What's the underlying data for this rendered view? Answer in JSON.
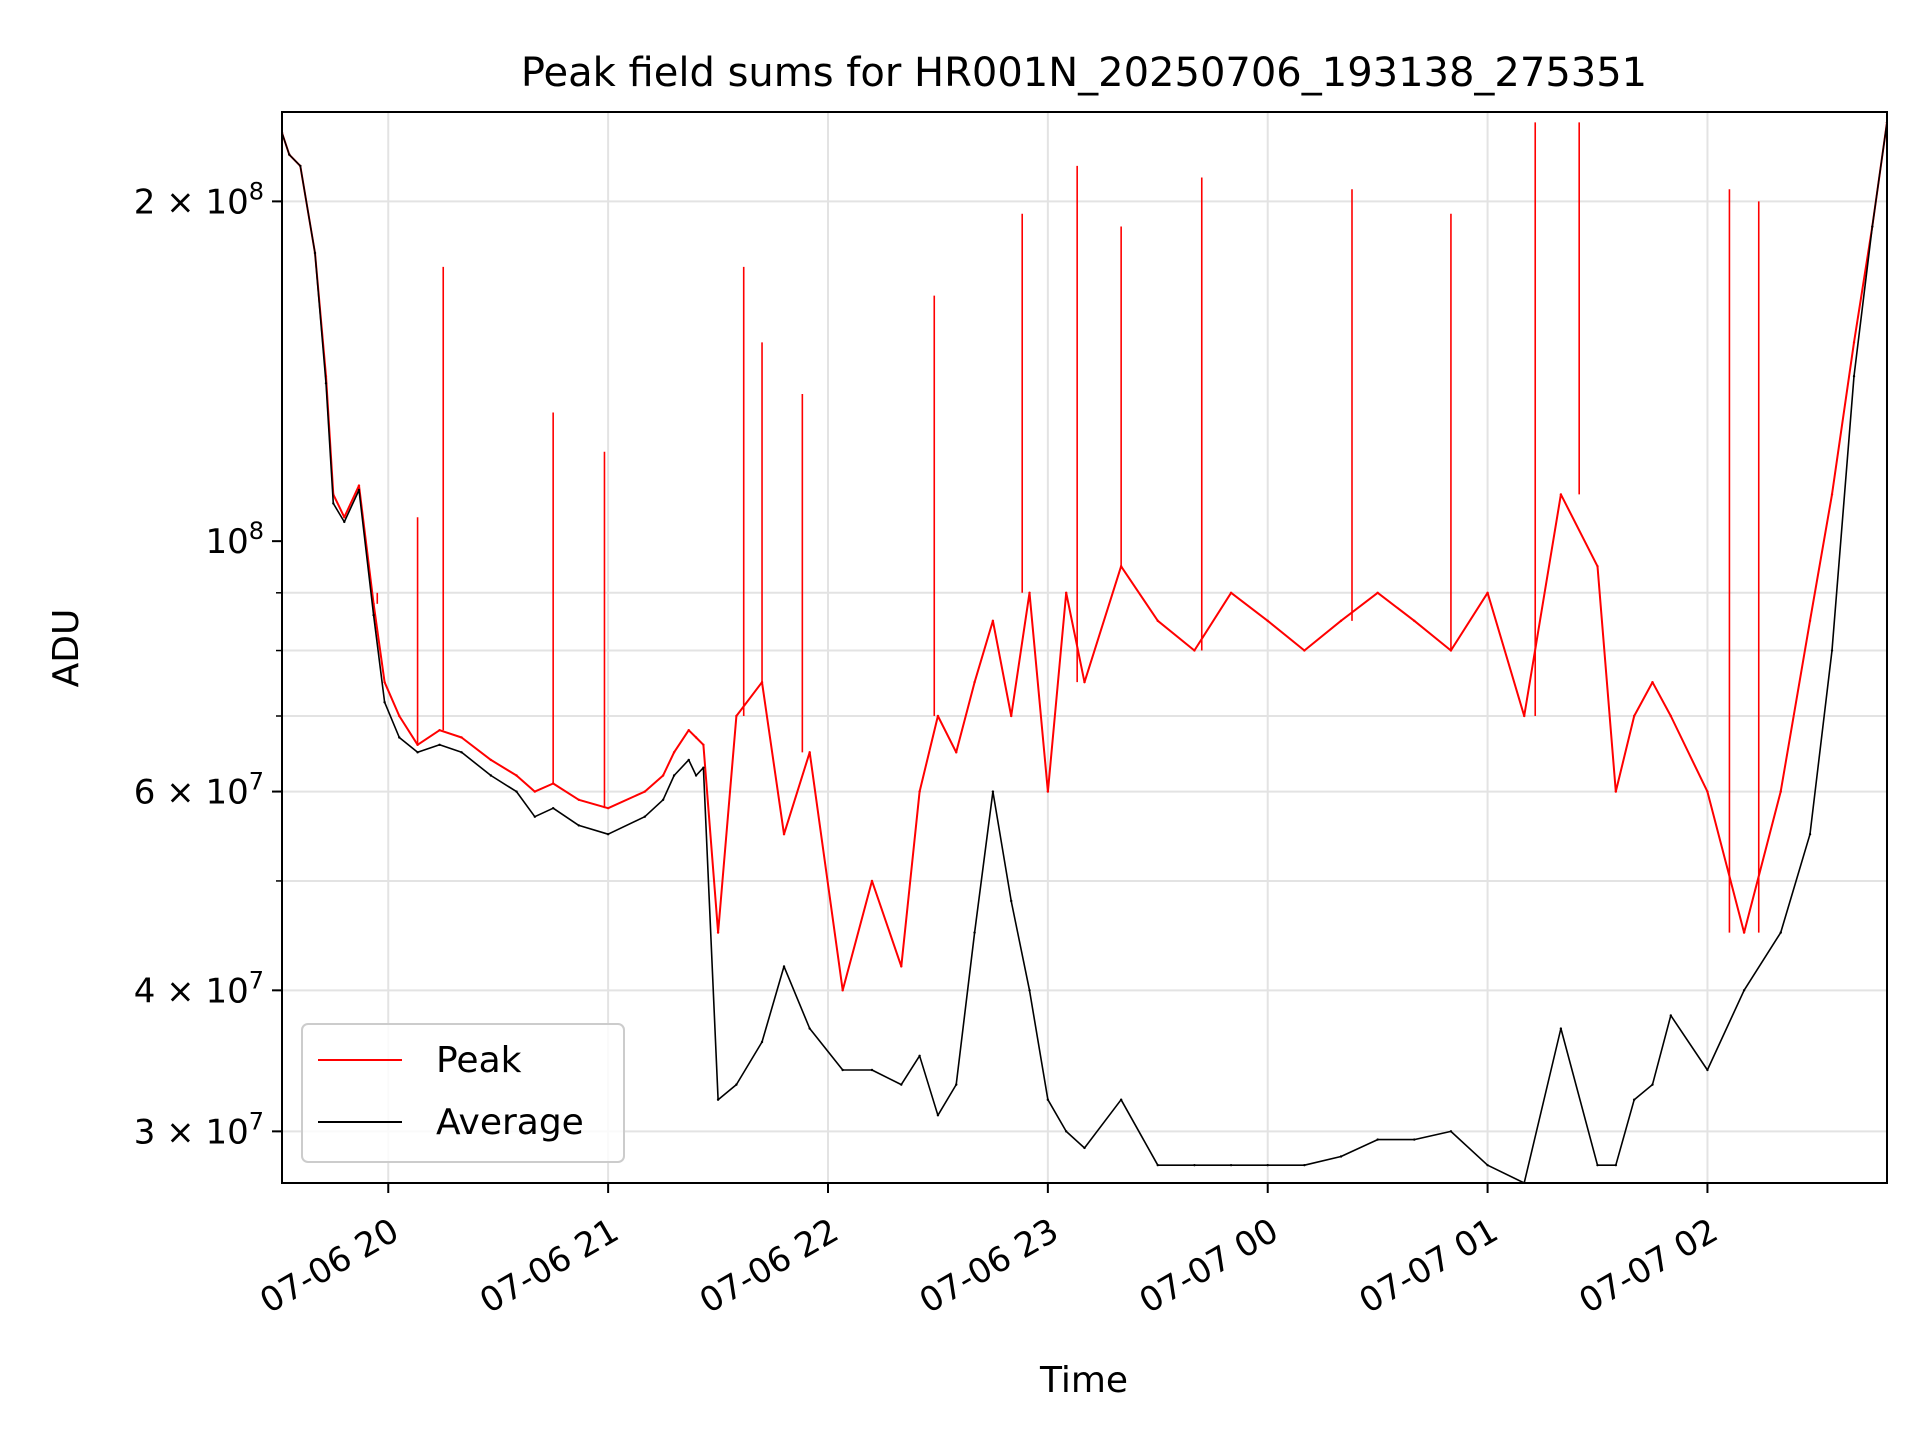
{
  "chart_data": {
    "type": "line",
    "title": "Peak field sums for HR001N_20250706_193138_275351",
    "xlabel": "Time",
    "ylabel": "ADU",
    "yscale": "log",
    "grid": true,
    "legend_position": "lower-left",
    "x_ticks": [
      {
        "t": "2025-07-06T20:00",
        "label": "07-06 20"
      },
      {
        "t": "2025-07-06T21:00",
        "label": "07-06 21"
      },
      {
        "t": "2025-07-06T22:00",
        "label": "07-06 22"
      },
      {
        "t": "2025-07-06T23:00",
        "label": "07-06 23"
      },
      {
        "t": "2025-07-07T00:00",
        "label": "07-07 00"
      },
      {
        "t": "2025-07-07T01:00",
        "label": "07-07 01"
      },
      {
        "t": "2025-07-07T02:00",
        "label": "07-07 02"
      }
    ],
    "y_ticks": [
      {
        "value": 30000000,
        "mantissa": "3",
        "exponent": "7"
      },
      {
        "value": 40000000,
        "mantissa": "4",
        "exponent": "7"
      },
      {
        "value": 60000000,
        "mantissa": "6",
        "exponent": "7"
      },
      {
        "value": 100000000,
        "mantissa": "",
        "exponent": "8"
      },
      {
        "value": 200000000,
        "mantissa": "2",
        "exponent": "8"
      }
    ],
    "xlim": [
      "2025-07-06T19:31",
      "2025-07-07T02:49"
    ],
    "ylim": [
      27000000,
      240000000
    ],
    "series": [
      {
        "name": "Peak",
        "color": "#ff0000",
        "x": [
          "2025-07-06T19:31",
          "2025-07-06T19:33",
          "2025-07-06T19:36",
          "2025-07-06T19:40",
          "2025-07-06T19:43",
          "2025-07-06T19:45",
          "2025-07-06T19:48",
          "2025-07-06T19:52",
          "2025-07-06T19:56",
          "2025-07-06T19:59",
          "2025-07-06T20:03",
          "2025-07-06T20:08",
          "2025-07-06T20:14",
          "2025-07-06T20:20",
          "2025-07-06T20:28",
          "2025-07-06T20:35",
          "2025-07-06T20:40",
          "2025-07-06T20:45",
          "2025-07-06T20:52",
          "2025-07-06T21:00",
          "2025-07-06T21:10",
          "2025-07-06T21:15",
          "2025-07-06T21:18",
          "2025-07-06T21:22",
          "2025-07-06T21:24",
          "2025-07-06T21:26",
          "2025-07-06T21:30",
          "2025-07-06T21:35",
          "2025-07-06T21:42",
          "2025-07-06T21:48",
          "2025-07-06T21:55",
          "2025-07-06T22:04",
          "2025-07-06T22:12",
          "2025-07-06T22:20",
          "2025-07-06T22:25",
          "2025-07-06T22:30",
          "2025-07-06T22:35",
          "2025-07-06T22:40",
          "2025-07-06T22:45",
          "2025-07-06T22:50",
          "2025-07-06T22:55",
          "2025-07-06T23:00",
          "2025-07-06T23:05",
          "2025-07-06T23:10",
          "2025-07-06T23:20",
          "2025-07-06T23:30",
          "2025-07-06T23:40",
          "2025-07-06T23:50",
          "2025-07-07T00:00",
          "2025-07-07T00:10",
          "2025-07-07T00:20",
          "2025-07-07T00:30",
          "2025-07-07T00:40",
          "2025-07-07T00:50",
          "2025-07-07T01:00",
          "2025-07-07T01:10",
          "2025-07-07T01:20",
          "2025-07-07T01:30",
          "2025-07-07T01:35",
          "2025-07-07T01:40",
          "2025-07-07T01:45",
          "2025-07-07T01:50",
          "2025-07-07T02:00",
          "2025-07-07T02:10",
          "2025-07-07T02:20",
          "2025-07-07T02:28",
          "2025-07-07T02:34",
          "2025-07-07T02:40",
          "2025-07-07T02:45",
          "2025-07-07T02:49"
        ],
        "y": [
          230000000,
          220000000,
          215000000,
          180000000,
          140000000,
          110000000,
          105000000,
          112000000,
          88000000,
          75000000,
          70000000,
          66000000,
          68000000,
          67000000,
          64000000,
          62000000,
          60000000,
          61000000,
          59000000,
          58000000,
          60000000,
          62000000,
          65000000,
          68000000,
          67000000,
          66000000,
          45000000,
          70000000,
          75000000,
          55000000,
          65000000,
          40000000,
          50000000,
          42000000,
          60000000,
          70000000,
          65000000,
          75000000,
          85000000,
          70000000,
          90000000,
          60000000,
          90000000,
          75000000,
          95000000,
          85000000,
          80000000,
          90000000,
          85000000,
          80000000,
          85000000,
          90000000,
          85000000,
          80000000,
          90000000,
          70000000,
          110000000,
          95000000,
          60000000,
          70000000,
          75000000,
          70000000,
          60000000,
          45000000,
          60000000,
          85000000,
          110000000,
          150000000,
          190000000,
          235000000
        ],
        "spikes": [
          {
            "x": "2025-07-06T19:57",
            "y": 90000000
          },
          {
            "x": "2025-07-06T20:08",
            "y": 105000000
          },
          {
            "x": "2025-07-06T20:15",
            "y": 175000000
          },
          {
            "x": "2025-07-06T20:45",
            "y": 130000000
          },
          {
            "x": "2025-07-06T20:59",
            "y": 120000000
          },
          {
            "x": "2025-07-06T21:37",
            "y": 175000000
          },
          {
            "x": "2025-07-06T21:42",
            "y": 150000000
          },
          {
            "x": "2025-07-06T21:53",
            "y": 135000000
          },
          {
            "x": "2025-07-06T22:29",
            "y": 165000000
          },
          {
            "x": "2025-07-06T22:53",
            "y": 195000000
          },
          {
            "x": "2025-07-06T23:08",
            "y": 215000000
          },
          {
            "x": "2025-07-06T23:20",
            "y": 190000000
          },
          {
            "x": "2025-07-06T23:42",
            "y": 210000000
          },
          {
            "x": "2025-07-07T00:23",
            "y": 205000000
          },
          {
            "x": "2025-07-07T00:50",
            "y": 195000000
          },
          {
            "x": "2025-07-07T01:13",
            "y": 235000000
          },
          {
            "x": "2025-07-07T01:25",
            "y": 235000000
          },
          {
            "x": "2025-07-07T02:06",
            "y": 205000000
          },
          {
            "x": "2025-07-07T02:14",
            "y": 200000000
          }
        ]
      },
      {
        "name": "Average",
        "color": "#000000",
        "x": [
          "2025-07-06T19:31",
          "2025-07-06T19:33",
          "2025-07-06T19:36",
          "2025-07-06T19:40",
          "2025-07-06T19:43",
          "2025-07-06T19:45",
          "2025-07-06T19:48",
          "2025-07-06T19:52",
          "2025-07-06T19:56",
          "2025-07-06T19:59",
          "2025-07-06T20:03",
          "2025-07-06T20:08",
          "2025-07-06T20:14",
          "2025-07-06T20:20",
          "2025-07-06T20:28",
          "2025-07-06T20:35",
          "2025-07-06T20:40",
          "2025-07-06T20:45",
          "2025-07-06T20:52",
          "2025-07-06T21:00",
          "2025-07-06T21:10",
          "2025-07-06T21:15",
          "2025-07-06T21:18",
          "2025-07-06T21:22",
          "2025-07-06T21:24",
          "2025-07-06T21:26",
          "2025-07-06T21:30",
          "2025-07-06T21:35",
          "2025-07-06T21:42",
          "2025-07-06T21:48",
          "2025-07-06T21:55",
          "2025-07-06T22:04",
          "2025-07-06T22:12",
          "2025-07-06T22:20",
          "2025-07-06T22:25",
          "2025-07-06T22:30",
          "2025-07-06T22:35",
          "2025-07-06T22:40",
          "2025-07-06T22:45",
          "2025-07-06T22:50",
          "2025-07-06T22:55",
          "2025-07-06T23:00",
          "2025-07-06T23:05",
          "2025-07-06T23:10",
          "2025-07-06T23:20",
          "2025-07-06T23:30",
          "2025-07-06T23:40",
          "2025-07-06T23:50",
          "2025-07-07T00:00",
          "2025-07-07T00:10",
          "2025-07-07T00:20",
          "2025-07-07T00:30",
          "2025-07-07T00:40",
          "2025-07-07T00:50",
          "2025-07-07T01:00",
          "2025-07-07T01:10",
          "2025-07-07T01:20",
          "2025-07-07T01:30",
          "2025-07-07T01:35",
          "2025-07-07T01:40",
          "2025-07-07T01:45",
          "2025-07-07T01:50",
          "2025-07-07T02:00",
          "2025-07-07T02:10",
          "2025-07-07T02:20",
          "2025-07-07T02:28",
          "2025-07-07T02:34",
          "2025-07-07T02:40",
          "2025-07-07T02:45",
          "2025-07-07T02:49"
        ],
        "y": [
          230000000,
          220000000,
          215000000,
          180000000,
          138000000,
          108000000,
          104000000,
          111000000,
          86000000,
          72000000,
          67000000,
          65000000,
          66000000,
          65000000,
          62000000,
          60000000,
          57000000,
          58000000,
          56000000,
          55000000,
          57000000,
          59000000,
          62000000,
          64000000,
          62000000,
          63000000,
          32000000,
          33000000,
          36000000,
          42000000,
          37000000,
          34000000,
          34000000,
          33000000,
          35000000,
          31000000,
          33000000,
          45000000,
          60000000,
          48000000,
          40000000,
          32000000,
          30000000,
          29000000,
          32000000,
          28000000,
          28000000,
          28000000,
          28000000,
          28000000,
          28500000,
          29500000,
          29500000,
          30000000,
          28000000,
          27000000,
          37000000,
          28000000,
          28000000,
          32000000,
          33000000,
          38000000,
          34000000,
          40000000,
          45000000,
          55000000,
          80000000,
          140000000,
          190000000,
          235000000
        ]
      }
    ]
  }
}
